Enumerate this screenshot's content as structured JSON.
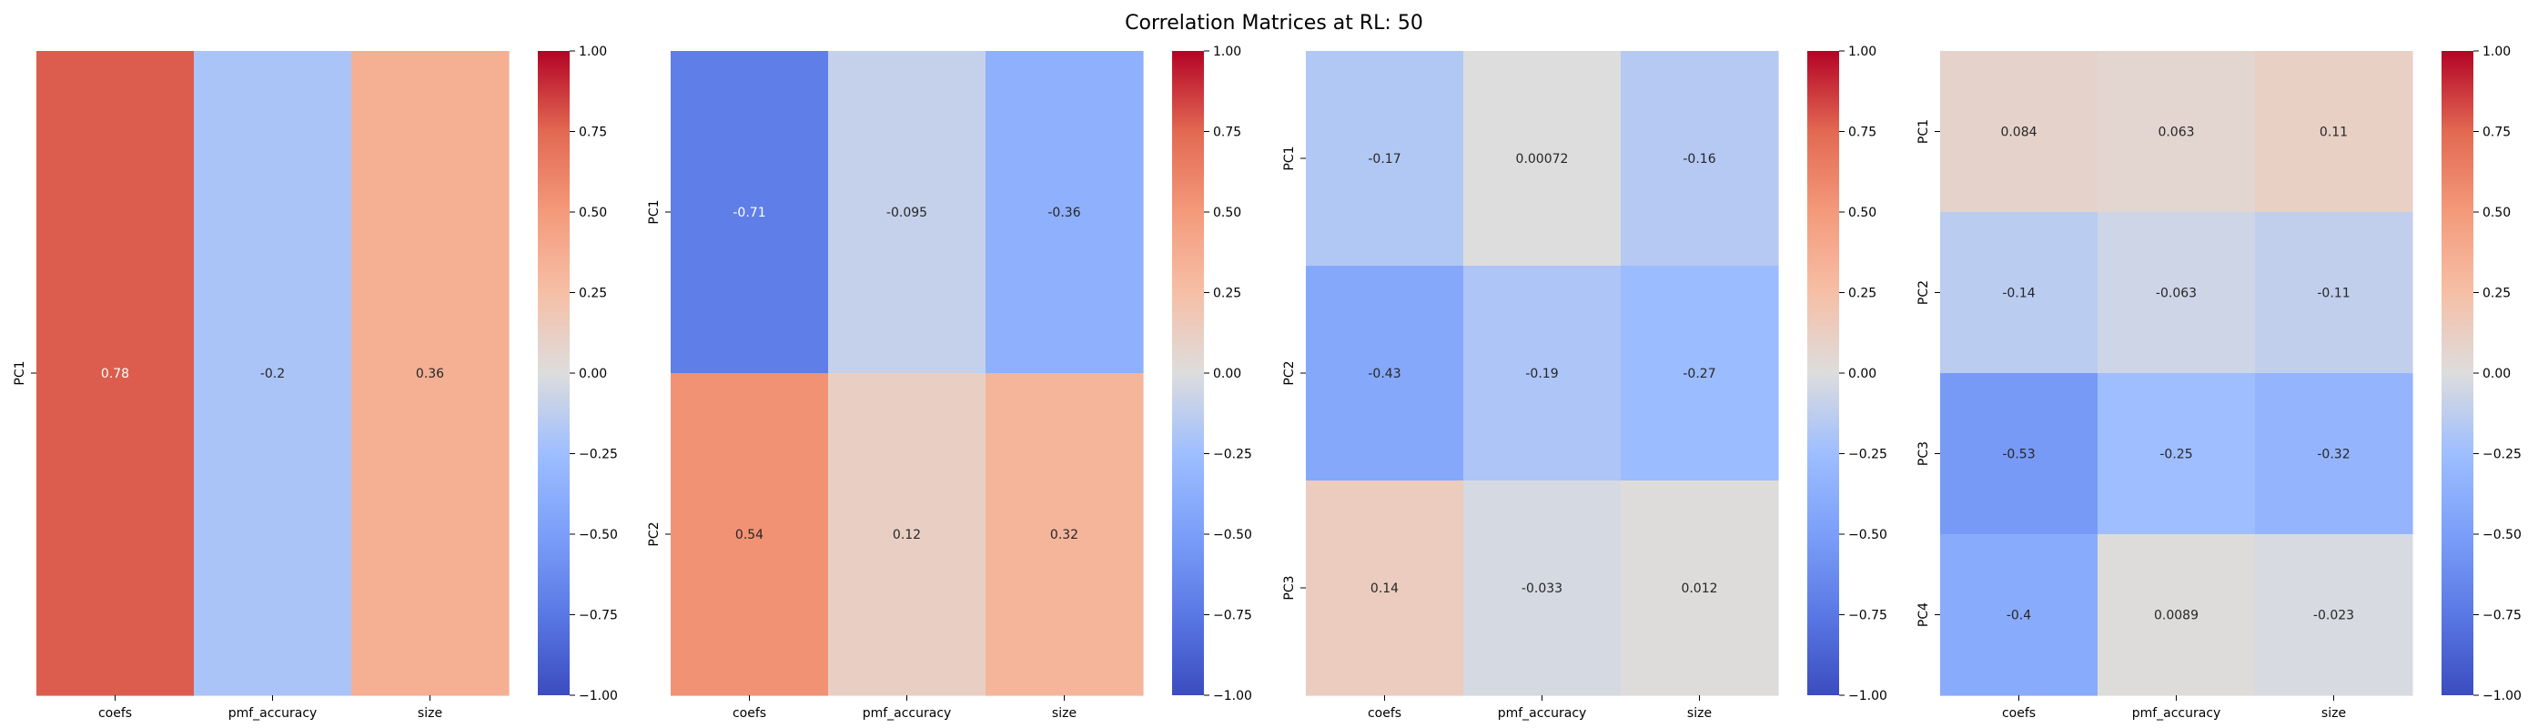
{
  "title": "Correlation Matrices at RL: 50",
  "colorbar_ticks": [
    "1.00",
    "0.75",
    "0.50",
    "0.25",
    "0.00",
    "−0.25",
    "−0.50",
    "−0.75",
    "−1.00"
  ],
  "chart_data": [
    {
      "type": "heatmap",
      "columns": [
        "coefs",
        "pmf_accuracy",
        "size"
      ],
      "rows": [
        "PC1"
      ],
      "values": [
        [
          0.78,
          -0.2,
          0.36
        ]
      ],
      "labels": [
        [
          "0.78",
          "-0.2",
          "0.36"
        ]
      ],
      "vmin": -1.0,
      "vmax": 1.0,
      "colormap": "coolwarm"
    },
    {
      "type": "heatmap",
      "columns": [
        "coefs",
        "pmf_accuracy",
        "size"
      ],
      "rows": [
        "PC1",
        "PC2"
      ],
      "values": [
        [
          -0.71,
          -0.095,
          -0.36
        ],
        [
          0.54,
          0.12,
          0.32
        ]
      ],
      "labels": [
        [
          "-0.71",
          "-0.095",
          "-0.36"
        ],
        [
          "0.54",
          "0.12",
          "0.32"
        ]
      ],
      "vmin": -1.0,
      "vmax": 1.0,
      "colormap": "coolwarm"
    },
    {
      "type": "heatmap",
      "columns": [
        "coefs",
        "pmf_accuracy",
        "size"
      ],
      "rows": [
        "PC1",
        "PC2",
        "PC3"
      ],
      "values": [
        [
          -0.17,
          0.00072,
          -0.16
        ],
        [
          -0.43,
          -0.19,
          -0.27
        ],
        [
          0.14,
          -0.033,
          0.012
        ]
      ],
      "labels": [
        [
          "-0.17",
          "0.00072",
          "-0.16"
        ],
        [
          "-0.43",
          "-0.19",
          "-0.27"
        ],
        [
          "0.14",
          "-0.033",
          "0.012"
        ]
      ],
      "vmin": -1.0,
      "vmax": 1.0,
      "colormap": "coolwarm"
    },
    {
      "type": "heatmap",
      "columns": [
        "coefs",
        "pmf_accuracy",
        "size"
      ],
      "rows": [
        "PC1",
        "PC2",
        "PC3",
        "PC4"
      ],
      "values": [
        [
          0.084,
          0.063,
          0.11
        ],
        [
          -0.14,
          -0.063,
          -0.11
        ],
        [
          -0.53,
          -0.25,
          -0.32
        ],
        [
          -0.4,
          0.0089,
          -0.023
        ]
      ],
      "labels": [
        [
          "0.084",
          "0.063",
          "0.11"
        ],
        [
          "-0.14",
          "-0.063",
          "-0.11"
        ],
        [
          "-0.53",
          "-0.25",
          "-0.32"
        ],
        [
          "-0.4",
          "0.0089",
          "-0.023"
        ]
      ],
      "vmin": -1.0,
      "vmax": 1.0,
      "colormap": "coolwarm"
    }
  ]
}
